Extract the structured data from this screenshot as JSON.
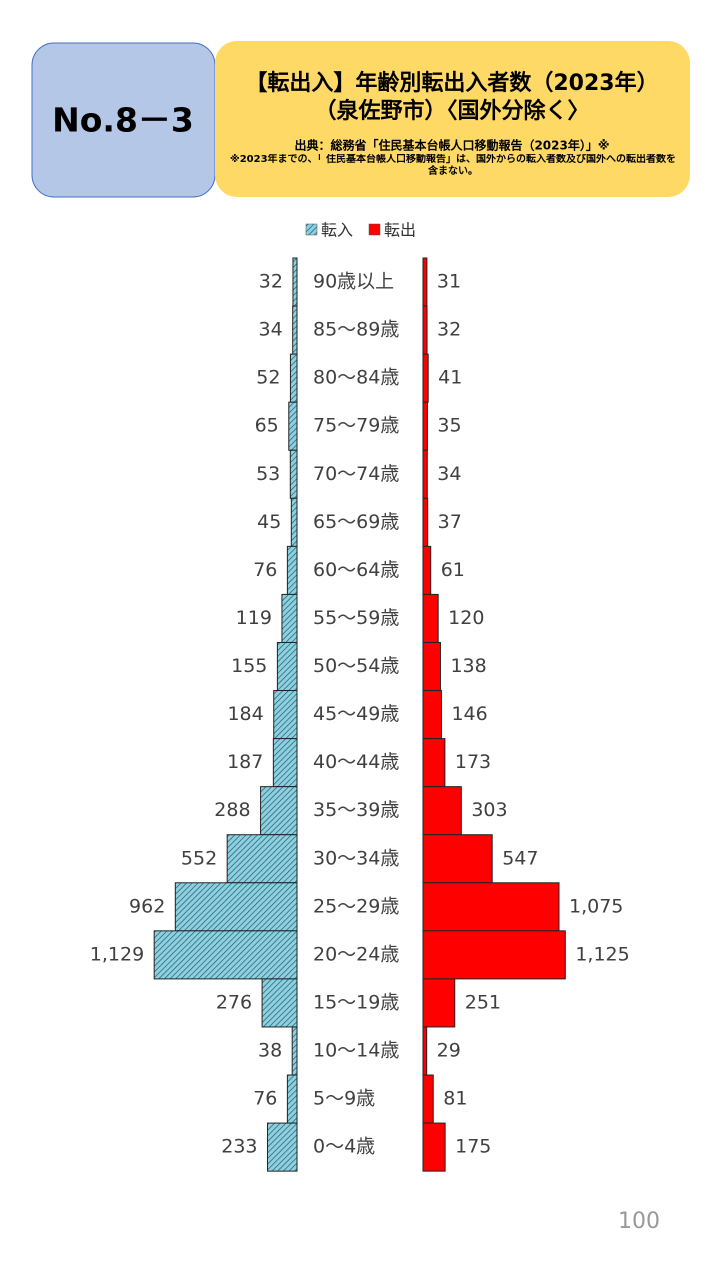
{
  "header": {
    "number": "No.8－3",
    "source": "出典：総務省「住民基本台帳人口移動報告（2023年）」※",
    "note": "※2023年までの、「 住民基本台帳人口移動報告」は、国外からの転入者数及び国外への転出者数を含まない。"
  },
  "page_number": "100",
  "chart_data": {
    "type": "pyramid",
    "title": "【転出入】年齢別転出入者数（2023年）",
    "subtitle": "（泉佐野市）〈国外分除く〉",
    "categories": [
      "90歳以上",
      "85～89歳",
      "80～84歳",
      "75～79歳",
      "70～74歳",
      "65～69歳",
      "60～64歳",
      "55～59歳",
      "50～54歳",
      "45～49歳",
      "40～44歳",
      "35～39歳",
      "30～34歳",
      "25～29歳",
      "20～24歳",
      "15～19歳",
      "10～14歳",
      "5～9歳",
      "0～4歳"
    ],
    "series": [
      {
        "name": "転入",
        "color": "#8fd0e0",
        "pattern": "hatch",
        "values": [
          32,
          34,
          52,
          65,
          53,
          45,
          76,
          119,
          155,
          184,
          187,
          288,
          552,
          962,
          1129,
          276,
          38,
          76,
          233
        ],
        "value_labels": [
          "32",
          "34",
          "52",
          "65",
          "53",
          "45",
          "76",
          "119",
          "155",
          "184",
          "187",
          "288",
          "552",
          "962",
          "1,129",
          "276",
          "38",
          "76",
          "233"
        ]
      },
      {
        "name": "転出",
        "color": "#ff0000",
        "pattern": "solid",
        "values": [
          31,
          32,
          41,
          35,
          34,
          37,
          61,
          120,
          138,
          146,
          173,
          303,
          547,
          1075,
          1125,
          251,
          29,
          81,
          175
        ],
        "value_labels": [
          "31",
          "32",
          "41",
          "35",
          "34",
          "37",
          "61",
          "120",
          "138",
          "146",
          "173",
          "303",
          "547",
          "1,075",
          "1,125",
          "251",
          "29",
          "81",
          "175"
        ]
      }
    ],
    "legend": "top"
  }
}
